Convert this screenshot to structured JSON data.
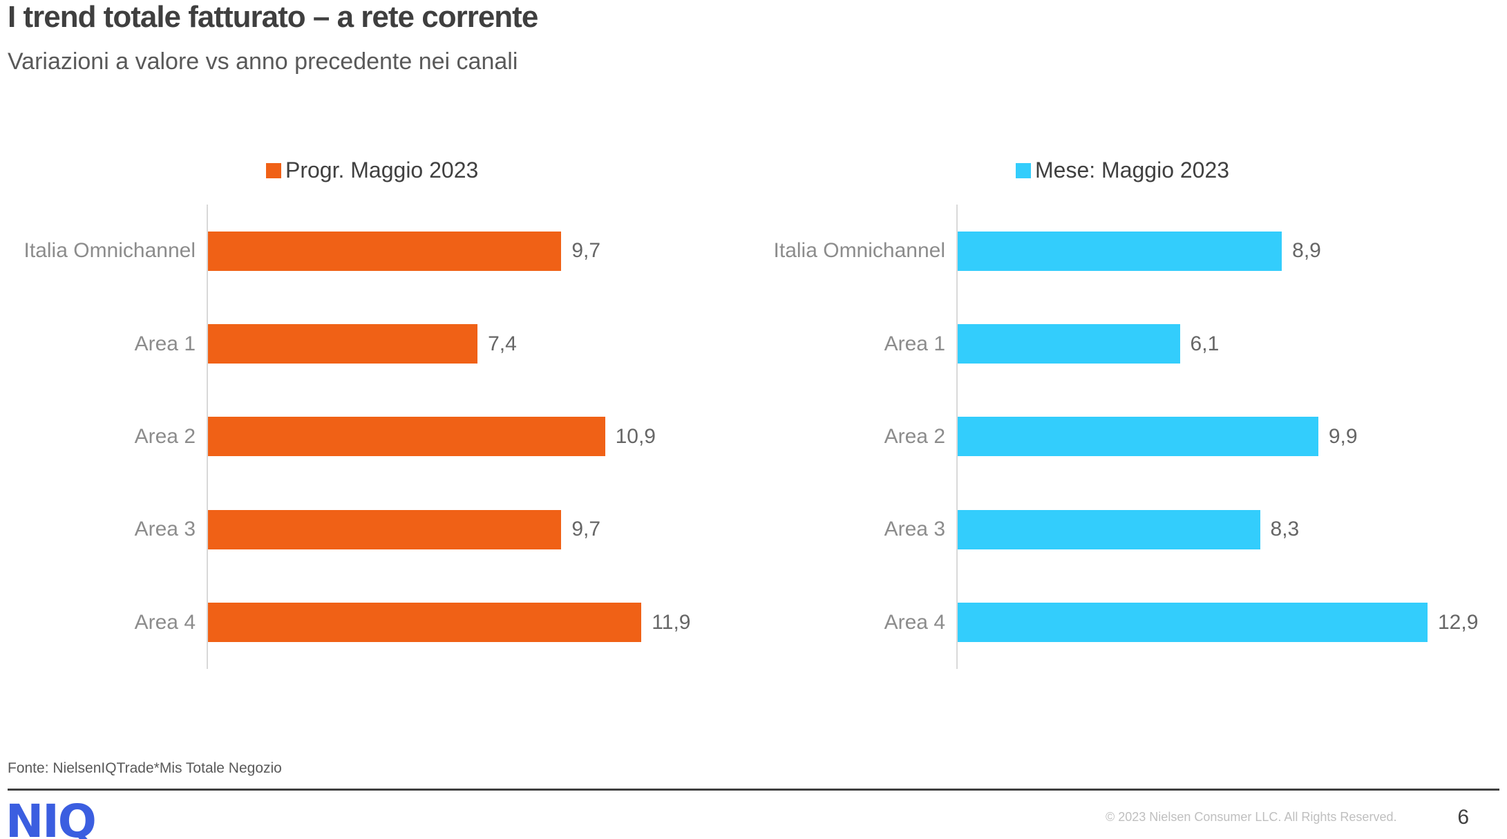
{
  "header": {
    "title": "I trend totale fatturato – a rete corrente",
    "subtitle": "Variazioni a valore vs anno precedente nei canali"
  },
  "footer": {
    "source": "Fonte: NielsenIQTrade*Mis Totale Negozio",
    "logo": "NIQ",
    "copyright": "© 2023 Nielsen Consumer LLC. All Rights Reserved.",
    "page_number": "6"
  },
  "colors": {
    "bar_orange": "#F06116",
    "bar_cyan": "#33CDFC",
    "logo_blue": "#3B5EE0",
    "axis_line": "#D9D9D9",
    "category_label": "#8C8C8C",
    "value_label": "#666666",
    "title_text": "#3F3F3F"
  },
  "chart_data": [
    {
      "type": "bar",
      "orientation": "horizontal",
      "legend": "Progr. Maggio 2023",
      "legend_position": "top",
      "color": "#F06116",
      "categories": [
        "Italia Omnichannel",
        "Area 1",
        "Area 2",
        "Area 3",
        "Area 4"
      ],
      "values": [
        9.7,
        7.4,
        10.9,
        9.7,
        11.9
      ],
      "labels": [
        "9,7",
        "7,4",
        "10,9",
        "9,7",
        "11,9"
      ],
      "xlim": [
        0,
        14
      ],
      "grid": false
    },
    {
      "type": "bar",
      "orientation": "horizontal",
      "legend": "Mese: Maggio 2023",
      "legend_position": "top",
      "color": "#33CDFC",
      "categories": [
        "Italia Omnichannel",
        "Area 1",
        "Area 2",
        "Area 3",
        "Area 4"
      ],
      "values": [
        8.9,
        6.1,
        9.9,
        8.3,
        12.9
      ],
      "labels": [
        "8,9",
        "6,1",
        "9,9",
        "8,3",
        "12,9"
      ],
      "xlim": [
        0,
        14
      ],
      "grid": false
    }
  ]
}
